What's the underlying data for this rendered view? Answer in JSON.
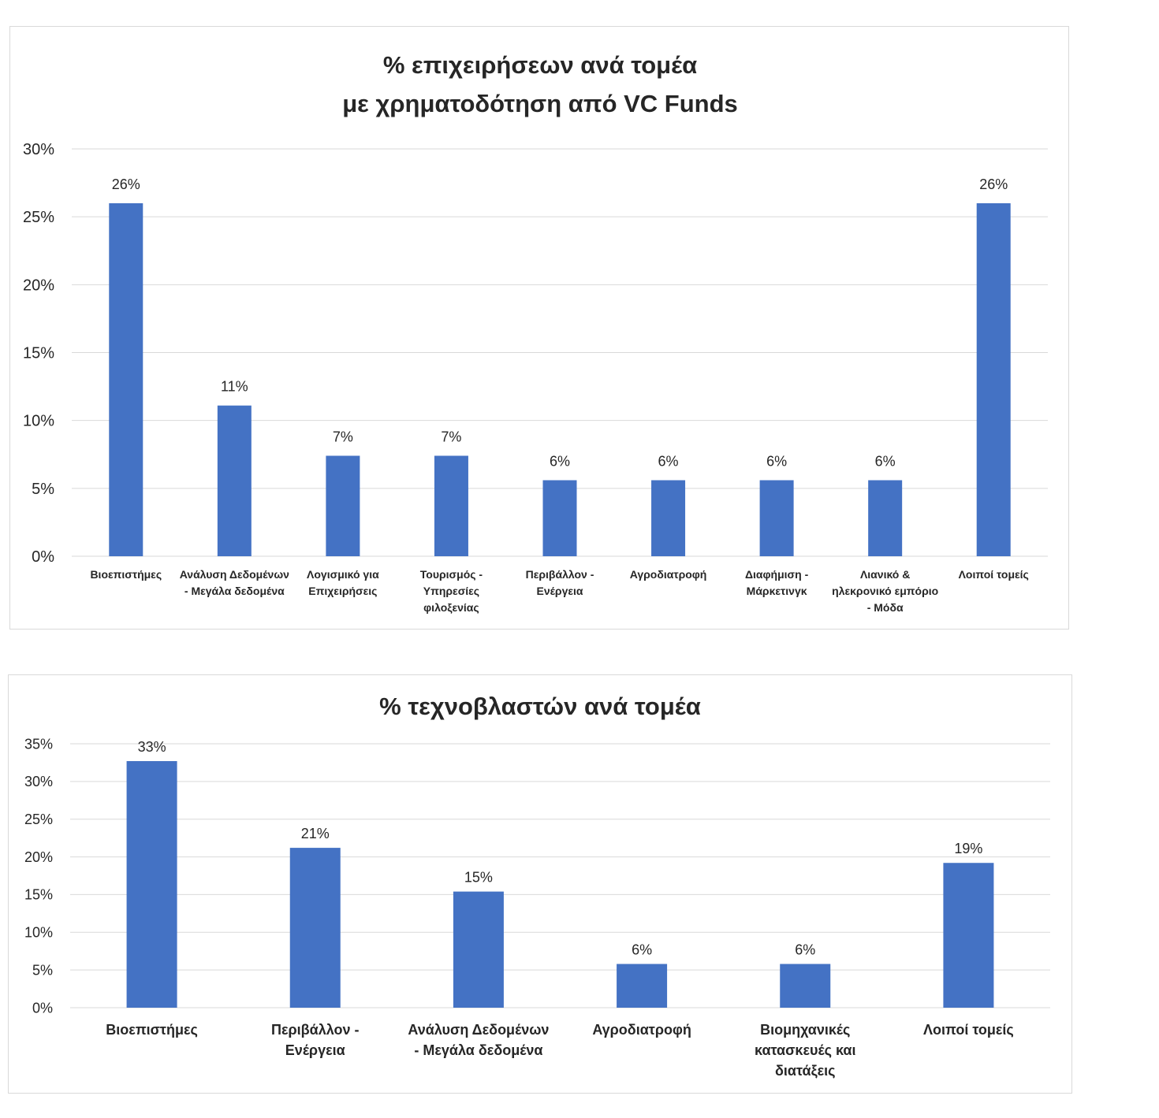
{
  "chart_data": [
    {
      "type": "bar",
      "title": [
        "% επιχειρήσεων ανά τομέα",
        "με χρηματοδότηση από VC Funds"
      ],
      "categories": [
        [
          "Βιοεπιστήμες"
        ],
        [
          "Ανάλυση Δεδομένων",
          "- Μεγάλα δεδομένα"
        ],
        [
          "Λογισμικό για",
          "Επιχειρήσεις"
        ],
        [
          "Τουρισμός -",
          "Υπηρεσίες",
          "φιλοξενίας"
        ],
        [
          "Περιβάλλον -",
          "Ενέργεια"
        ],
        [
          "Αγροδιατροφή"
        ],
        [
          "Διαφήμιση -",
          "Μάρκετινγκ"
        ],
        [
          "Λιανικό &",
          "ηλεκρονικό εμπόριο",
          "- Μόδα"
        ],
        [
          "Λοιποί τομείς"
        ]
      ],
      "values": [
        26,
        11.1,
        7.4,
        7.4,
        5.6,
        5.6,
        5.6,
        5.6,
        26
      ],
      "data_labels": [
        "26%",
        "11%",
        "7%",
        "7%",
        "6%",
        "6%",
        "6%",
        "6%",
        "26%"
      ],
      "ylim": [
        0,
        30
      ],
      "yticks": [
        "0%",
        "5%",
        "10%",
        "15%",
        "20%",
        "25%",
        "30%"
      ],
      "grid": true,
      "bar_color": "#4472C4"
    },
    {
      "type": "bar",
      "title": [
        "% τεχνοβλαστών ανά τομέα"
      ],
      "categories": [
        [
          "Βιοεπιστήμες"
        ],
        [
          "Περιβάλλον -",
          "Ενέργεια"
        ],
        [
          "Ανάλυση Δεδομένων",
          "- Μεγάλα δεδομένα"
        ],
        [
          "Αγροδιατροφή"
        ],
        [
          "Βιομηχανικές",
          "κατασκευές και",
          "διατάξεις"
        ],
        [
          "Λοιποί τομείς"
        ]
      ],
      "values": [
        32.7,
        21.2,
        15.4,
        5.8,
        5.8,
        19.2
      ],
      "data_labels": [
        "33%",
        "21%",
        "15%",
        "6%",
        "6%",
        "19%"
      ],
      "ylim": [
        0,
        35
      ],
      "yticks": [
        "0%",
        "5%",
        "10%",
        "15%",
        "20%",
        "25%",
        "30%",
        "35%"
      ],
      "grid": true,
      "bar_color": "#4472C4"
    }
  ]
}
